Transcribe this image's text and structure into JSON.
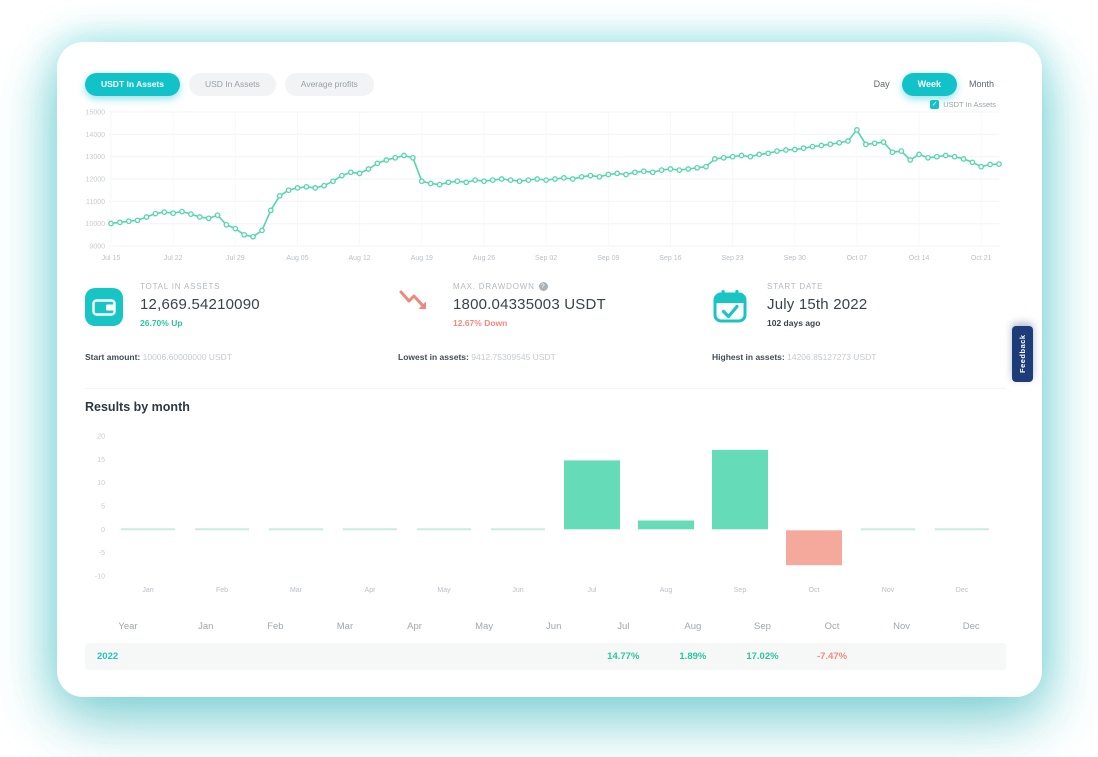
{
  "colors": {
    "accent_cyan": "#12c2c9",
    "line_mint": "#55d6ac",
    "bar_mint": "#66dbb7",
    "bar_salmon": "#f5a99c",
    "teal_text": "#2cc5a0",
    "red_text": "#f5897b",
    "feedback_navy": "#1d3c78"
  },
  "tabs": [
    {
      "label": "USDT In Assets",
      "active": true
    },
    {
      "label": "USD In Assets",
      "active": false
    },
    {
      "label": "Average profits",
      "active": false
    }
  ],
  "period_toggle": [
    {
      "label": "Day",
      "active": false
    },
    {
      "label": "Week",
      "active": true
    },
    {
      "label": "Month",
      "active": false
    }
  ],
  "legend": {
    "label": "USDT In Assets",
    "check_glyph": "✓"
  },
  "chart_data": [
    {
      "type": "line",
      "name": "USDT In Assets",
      "color": "#55d6ac",
      "ylim": [
        9000,
        15000
      ],
      "yticks": [
        15000,
        14000,
        13000,
        12000,
        11000,
        10000,
        9000
      ],
      "x_tick_labels": [
        "Jul 15",
        "Jul 22",
        "Jul 29",
        "Aug 05",
        "Aug 12",
        "Aug 19",
        "Aug 26",
        "Sep 02",
        "Sep 09",
        "Sep 16",
        "Sep 23",
        "Sep 30",
        "Oct 07",
        "Oct 14",
        "Oct 21"
      ],
      "days_per_tick": 7,
      "grid": true,
      "legend_position": "top-right",
      "values": [
        10006,
        10060,
        10110,
        10150,
        10300,
        10450,
        10520,
        10470,
        10540,
        10430,
        10300,
        10240,
        10380,
        9950,
        9780,
        9500,
        9413,
        9700,
        10600,
        11250,
        11500,
        11600,
        11650,
        11600,
        11700,
        11900,
        12150,
        12300,
        12250,
        12450,
        12700,
        12850,
        12950,
        13050,
        12950,
        11900,
        11800,
        11750,
        11850,
        11900,
        11850,
        11950,
        11900,
        11950,
        12000,
        11950,
        11900,
        11950,
        12000,
        11950,
        12000,
        12050,
        12000,
        12100,
        12150,
        12100,
        12200,
        12250,
        12200,
        12300,
        12350,
        12300,
        12400,
        12450,
        12400,
        12450,
        12500,
        12550,
        12900,
        12950,
        13000,
        13050,
        13000,
        13100,
        13150,
        13250,
        13300,
        13320,
        13380,
        13450,
        13500,
        13560,
        13620,
        13700,
        14200,
        13550,
        13600,
        13650,
        13200,
        13250,
        12850,
        13100,
        12950,
        13000,
        13050,
        13000,
        12900,
        12750,
        12550,
        12650,
        12669
      ]
    },
    {
      "type": "bar",
      "title": "Results by month",
      "categories": [
        "Jan",
        "Feb",
        "Mar",
        "Apr",
        "May",
        "Jun",
        "Jul",
        "Aug",
        "Sep",
        "Oct",
        "Nov",
        "Dec"
      ],
      "values": [
        null,
        null,
        null,
        null,
        null,
        null,
        14.77,
        1.89,
        17.02,
        -7.47,
        null,
        null
      ],
      "ylim": [
        -10,
        20
      ],
      "yticks": [
        20,
        15,
        10,
        5,
        0,
        -5,
        -10
      ],
      "positive_color": "#66dbb7",
      "negative_color": "#f5a99c",
      "zero_line_color": "#c9eede",
      "grid": false
    }
  ],
  "stats": {
    "total": {
      "icon": "wallet-icon",
      "label": "TOTAL IN ASSETS",
      "value": "12,669.54210090",
      "change": "26.70% Up"
    },
    "drawdown": {
      "icon": "trend-down-icon",
      "label": "MAX. DRAWDOWN",
      "info_glyph": "?",
      "value": "1800.04335003 USDT",
      "change": "12.67% Down"
    },
    "start_date": {
      "icon": "calendar-check-icon",
      "label": "START DATE",
      "value": "July 15th 2022",
      "note": "102 days ago"
    }
  },
  "footnotes": [
    {
      "label": "Start amount:",
      "value": "10006.60000000 USDT"
    },
    {
      "label": "Lowest in assets:",
      "value": "9412.75309545 USDT"
    },
    {
      "label": "Highest in assets:",
      "value": "14206.85127273 USDT"
    }
  ],
  "table": {
    "headers": [
      "Year",
      "Jan",
      "Feb",
      "Mar",
      "Apr",
      "May",
      "Jun",
      "Jul",
      "Aug",
      "Sep",
      "Oct",
      "Nov",
      "Dec"
    ],
    "rows": [
      {
        "year": "2022",
        "values": [
          "",
          "",
          "",
          "",
          "",
          "",
          "14.77%",
          "1.89%",
          "17.02%",
          "-7.47%",
          "",
          ""
        ]
      }
    ]
  },
  "feedback_label": "Feedback"
}
